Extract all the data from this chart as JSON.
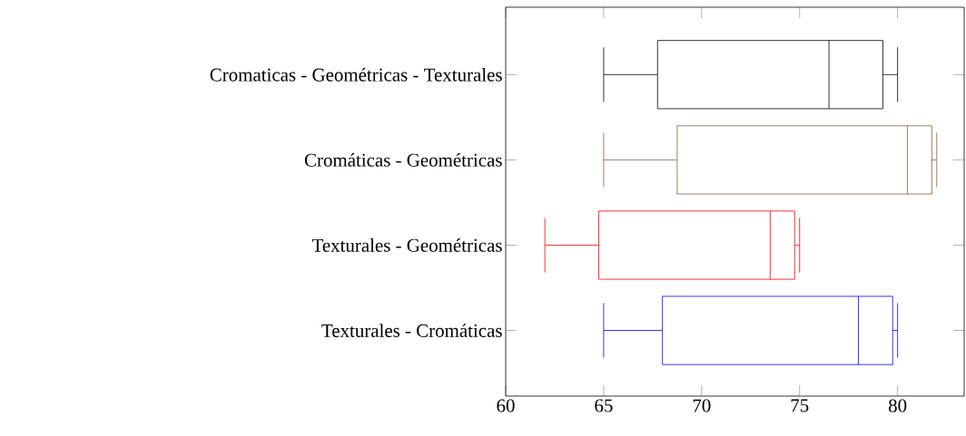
{
  "chart_data": {
    "type": "box",
    "orientation": "horizontal",
    "categories": [
      "Cromaticas - Geométricas - Texturales",
      "Cromáticas - Geométricas",
      "Texturales - Geométricas",
      "Texturales - Cromáticas"
    ],
    "boxes": [
      {
        "low": 65,
        "q1": 67.75,
        "median": 76.5,
        "q3": 79.25,
        "high": 80
      },
      {
        "low": 65,
        "q1": 68.75,
        "median": 80.5,
        "q3": 81.75,
        "high": 82
      },
      {
        "low": 62,
        "q1": 64.75,
        "median": 73.5,
        "q3": 74.75,
        "high": 75
      },
      {
        "low": 65,
        "q1": 68,
        "median": 78,
        "q3": 79.75,
        "high": 80
      }
    ],
    "colors": [
      "#000000",
      "#8b5e34",
      "#ff0000",
      "#0000ff"
    ],
    "xlim": [
      60,
      83.4
    ],
    "xticks": [
      60,
      65,
      70,
      75,
      80
    ]
  }
}
